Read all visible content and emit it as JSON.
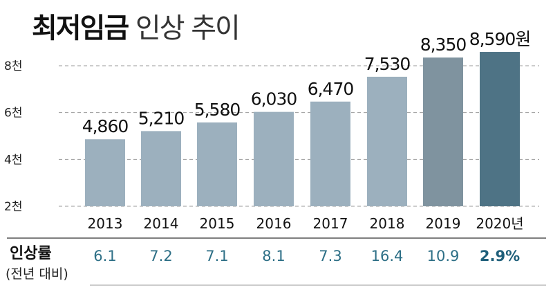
{
  "title_bold": "최저임금",
  "title_light": "인상 추이",
  "chart_data": {
    "type": "bar",
    "title": "최저임금 인상 추이",
    "categories": [
      "2013",
      "2014",
      "2015",
      "2016",
      "2017",
      "2018",
      "2019",
      "2020년"
    ],
    "values": [
      4860,
      5210,
      5580,
      6030,
      6470,
      7530,
      8350,
      8590
    ],
    "value_labels": [
      "4,860",
      "5,210",
      "5,580",
      "6,030",
      "6,470",
      "7,530",
      "8,350",
      "8,590원"
    ],
    "y_ticks": [
      {
        "value": 2000,
        "label": "2천"
      },
      {
        "value": 4000,
        "label": "4천"
      },
      {
        "value": 6000,
        "label": "6천"
      },
      {
        "value": 8000,
        "label": "8천"
      }
    ],
    "ylim": [
      2000,
      8800
    ],
    "grid": true,
    "bar_colors": [
      "#9cb0be",
      "#9cb0be",
      "#9cb0be",
      "#9cb0be",
      "#9cb0be",
      "#9cb0be",
      "#7f939f",
      "#4e7385"
    ],
    "rate_row": {
      "title": "인상률",
      "subtitle": "(전년 대비)",
      "labels": [
        "6.1",
        "7.2",
        "7.1",
        "8.1",
        "7.3",
        "16.4",
        "10.9",
        "2.9%"
      ],
      "values": [
        6.1,
        7.2,
        7.1,
        8.1,
        7.3,
        16.4,
        10.9,
        2.9
      ]
    }
  }
}
